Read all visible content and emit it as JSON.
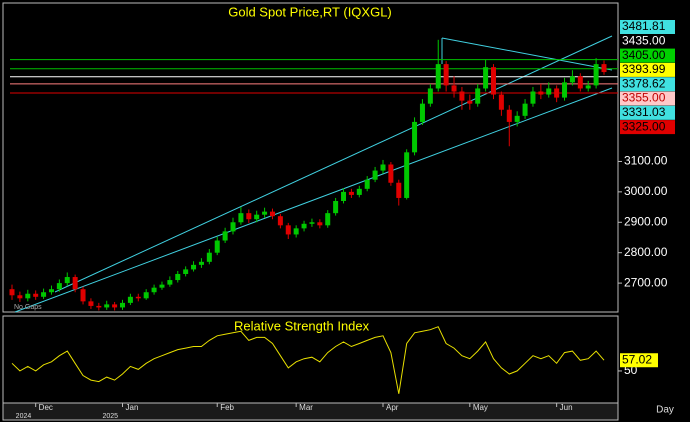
{
  "chart_data": {
    "type": "candlestick",
    "title": "Gold Spot Price,RT (IQXGL)",
    "note": "No Gaps",
    "x_unit": "Day",
    "categories": [
      null,
      null,
      null,
      "Dec",
      null,
      null,
      null,
      null,
      null,
      null,
      null,
      null,
      null,
      null,
      "Jan",
      null,
      null,
      null,
      null,
      null,
      null,
      null,
      null,
      null,
      null,
      null,
      "Feb",
      null,
      null,
      null,
      null,
      null,
      null,
      null,
      null,
      null,
      "Mar",
      null,
      null,
      null,
      null,
      null,
      null,
      null,
      null,
      null,
      null,
      "Apr",
      null,
      null,
      null,
      null,
      null,
      null,
      null,
      null,
      null,
      null,
      "May",
      null,
      null,
      null,
      null,
      null,
      null,
      null,
      null,
      null,
      null,
      "Jun",
      null,
      null,
      null,
      null,
      null,
      null
    ],
    "year_labels": [
      {
        "label": "2024",
        "month": "Dec"
      },
      {
        "label": "2025",
        "month": "Jan"
      }
    ],
    "open": [
      2680,
      2660,
      2650,
      2665,
      2655,
      2670,
      2680,
      2700,
      2720,
      2680,
      2640,
      2625,
      2620,
      2630,
      2620,
      2635,
      2655,
      2650,
      2670,
      2685,
      2695,
      2710,
      2730,
      2745,
      2760,
      2770,
      2800,
      2840,
      2870,
      2900,
      2930,
      2910,
      2925,
      2935,
      2920,
      2890,
      2860,
      2880,
      2895,
      2900,
      2890,
      2930,
      2970,
      3000,
      2990,
      3010,
      3040,
      3070,
      3090,
      3030,
      2980,
      3130,
      3230,
      3290,
      3340,
      3420,
      3350,
      3330,
      3300,
      3290,
      3340,
      3410,
      3320,
      3270,
      3230,
      3250,
      3290,
      3330,
      3320,
      3340,
      3310,
      3360,
      3380,
      3340,
      3350,
      3420
    ],
    "high": [
      2695,
      2672,
      2678,
      2676,
      2682,
      2692,
      2712,
      2735,
      2728,
      2688,
      2650,
      2635,
      2642,
      2638,
      2645,
      2665,
      2665,
      2680,
      2695,
      2705,
      2722,
      2740,
      2755,
      2772,
      2782,
      2812,
      2852,
      2882,
      2915,
      2950,
      2942,
      2938,
      2948,
      2945,
      2928,
      2898,
      2890,
      2905,
      2912,
      2910,
      2940,
      2980,
      3012,
      3010,
      3020,
      3052,
      3082,
      3105,
      3098,
      3040,
      3140,
      3245,
      3305,
      3355,
      3500,
      3430,
      3380,
      3345,
      3320,
      3355,
      3435,
      3420,
      3330,
      3285,
      3265,
      3305,
      3345,
      3355,
      3360,
      3350,
      3375,
      3400,
      3390,
      3365,
      3440,
      3432
    ],
    "low": [
      2645,
      2638,
      2640,
      2645,
      2648,
      2662,
      2672,
      2690,
      2670,
      2630,
      2615,
      2610,
      2612,
      2610,
      2612,
      2628,
      2640,
      2645,
      2662,
      2678,
      2688,
      2702,
      2722,
      2738,
      2750,
      2762,
      2792,
      2832,
      2860,
      2892,
      2898,
      2900,
      2915,
      2910,
      2880,
      2845,
      2850,
      2870,
      2885,
      2880,
      2882,
      2922,
      2962,
      2980,
      2982,
      3002,
      3032,
      3060,
      3020,
      2955,
      2975,
      3120,
      3220,
      3280,
      3330,
      3330,
      3310,
      3270,
      3270,
      3280,
      3330,
      3305,
      3250,
      3150,
      3215,
      3240,
      3280,
      3305,
      3310,
      3295,
      3300,
      3350,
      3330,
      3330,
      3340,
      3385
    ],
    "close": [
      2660,
      2650,
      2665,
      2655,
      2670,
      2680,
      2700,
      2720,
      2680,
      2640,
      2625,
      2620,
      2630,
      2620,
      2635,
      2655,
      2650,
      2670,
      2685,
      2695,
      2710,
      2730,
      2745,
      2760,
      2770,
      2800,
      2840,
      2870,
      2900,
      2930,
      2910,
      2925,
      2935,
      2920,
      2890,
      2860,
      2880,
      2895,
      2900,
      2890,
      2930,
      2970,
      3000,
      2990,
      3010,
      3040,
      3070,
      3090,
      3030,
      2980,
      3130,
      3230,
      3290,
      3340,
      3420,
      3350,
      3330,
      3300,
      3290,
      3340,
      3410,
      3320,
      3270,
      3230,
      3250,
      3290,
      3330,
      3320,
      3340,
      3310,
      3360,
      3380,
      3340,
      3350,
      3420,
      3394
    ],
    "up_color": "#00c800",
    "down_color": "#e00000",
    "ylim": [
      2605,
      3621
    ],
    "yticks": [
      {
        "value": 2700,
        "label": "2700.00"
      },
      {
        "value": 2800,
        "label": "2800.00"
      },
      {
        "value": 2900,
        "label": "2900.00"
      },
      {
        "value": 3000,
        "label": "3000.00"
      },
      {
        "value": 3100,
        "label": "3100.00"
      }
    ],
    "price_labels": [
      {
        "value": 3481.81,
        "label": "3481.81",
        "color": "#40e0e0",
        "text_color": "#000000",
        "line_color": null
      },
      {
        "value": 3435,
        "label": "3435.00",
        "color": "#000000",
        "text_color": "#ffffff",
        "line_color": "#00c000"
      },
      {
        "value": 3405,
        "label": "3405.00",
        "color": "#00d000",
        "text_color": "#000000",
        "line_color": "#00c000"
      },
      {
        "value": 3393.99,
        "label": "3393.99",
        "color": "#ffff00",
        "text_color": "#000000",
        "line_color": null
      },
      {
        "value": 3378.62,
        "label": "3378.62",
        "color": "#40e0e0",
        "text_color": "#000000",
        "line_color": "#ffffff"
      },
      {
        "value": 3355,
        "label": "3355.00",
        "color": "#ffc8c8",
        "text_color": "#c00000",
        "line_color": "#ff8080"
      },
      {
        "value": 3331.03,
        "label": "3331.03",
        "color": "#40e0e0",
        "text_color": "#000000",
        "line_color": null
      },
      {
        "value": 3325,
        "label": "3325.00",
        "color": "#e00000",
        "text_color": "#000000",
        "line_color": "#e00000"
      }
    ],
    "rsi": {
      "title": "Relative Strength Index",
      "color": "#e8e000",
      "values": [
        55,
        50,
        53,
        50,
        54,
        56,
        60,
        63,
        55,
        47,
        44,
        43,
        46,
        44,
        48,
        53,
        51,
        55,
        58,
        60,
        62,
        64,
        65,
        66,
        66,
        70,
        73,
        74,
        75,
        76,
        70,
        72,
        72,
        68,
        60,
        52,
        56,
        58,
        59,
        56,
        62,
        66,
        69,
        66,
        68,
        70,
        72,
        73,
        62,
        35,
        68,
        75,
        76,
        77,
        79,
        68,
        65,
        60,
        58,
        63,
        69,
        58,
        52,
        48,
        50,
        55,
        60,
        58,
        60,
        55,
        62,
        63,
        57,
        58,
        63,
        57.02
      ],
      "last_label": "57.02",
      "ylim": [
        29,
        86
      ],
      "yticks": [
        50
      ]
    }
  }
}
